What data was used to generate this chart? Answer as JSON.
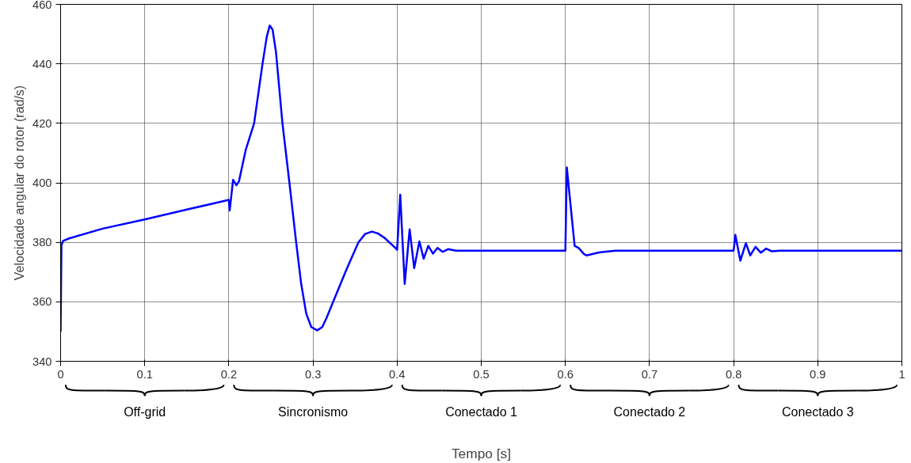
{
  "chart_data": {
    "type": "line",
    "xlabel": "Tempo [s]",
    "ylabel": "Velocidade angular do rotor (rad/s)",
    "xlim": [
      0,
      1
    ],
    "ylim": [
      340,
      460
    ],
    "xticks": [
      0,
      0.1,
      0.2,
      0.3,
      0.4,
      0.5,
      0.6,
      0.7,
      0.8,
      0.9,
      1
    ],
    "yticks": [
      340,
      360,
      380,
      400,
      420,
      440,
      460
    ],
    "grid": true,
    "line_style": "solid",
    "series": [
      {
        "color": "#0000ff",
        "x": [
          0,
          0.001,
          0.003,
          0.01,
          0.05,
          0.1,
          0.15,
          0.199,
          0.2,
          0.201,
          0.205,
          0.209,
          0.212,
          0.22,
          0.23,
          0.24,
          0.245,
          0.2486,
          0.252,
          0.256,
          0.2637,
          0.272,
          0.28,
          0.286,
          0.292,
          0.298,
          0.305,
          0.311,
          0.316,
          0.324,
          0.34,
          0.354,
          0.362,
          0.37,
          0.377,
          0.385,
          0.399,
          0.4,
          0.4037,
          0.409,
          0.4149,
          0.4203,
          0.4265,
          0.4316,
          0.437,
          0.4426,
          0.448,
          0.4542,
          0.4605,
          0.47,
          0.5,
          0.55,
          0.6,
          0.6017,
          0.611,
          0.6158,
          0.622,
          0.625,
          0.64,
          0.66,
          0.7,
          0.75,
          0.8,
          0.802,
          0.808,
          0.8145,
          0.8198,
          0.826,
          0.8324,
          0.8387,
          0.845,
          0.855,
          0.9,
          0.95,
          1
        ],
        "values": [
          350,
          379,
          380.5,
          381.3,
          384.6,
          387.7,
          391,
          394.2,
          394.2,
          390.7,
          401,
          399.2,
          400.5,
          411,
          420,
          440,
          449,
          452.9,
          451.5,
          444,
          420,
          400,
          380,
          366,
          356,
          351.5,
          350.4,
          351.5,
          354.5,
          360,
          371,
          380,
          382.8,
          383.6,
          383,
          381.5,
          377.8,
          377.5,
          396,
          366,
          384.4,
          371.3,
          380.3,
          374.5,
          378.8,
          376.2,
          378.1,
          376.8,
          377.7,
          377.2,
          377.2,
          377.2,
          377.2,
          405.2,
          378.8,
          378.1,
          376.1,
          375.6,
          376.6,
          377.2,
          377.2,
          377.2,
          377.2,
          382.5,
          373.8,
          379.7,
          375.6,
          378.5,
          376.5,
          377.9,
          377,
          377.2,
          377.2,
          377.2,
          377.2
        ]
      }
    ],
    "annotations": [
      "Off-grid",
      "Sincronismo",
      "Conectado 1",
      "Conectado 2",
      "Conectado 3"
    ]
  }
}
